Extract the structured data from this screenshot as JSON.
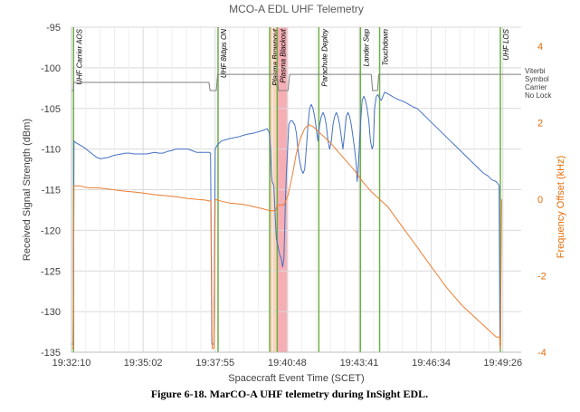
{
  "chart_data": {
    "type": "line",
    "title": "MCO-A EDL UHF Telemetry",
    "xlabel": "Spacecraft Event Time (SCET)",
    "ylabel": "Received Signal Strength (dBm)",
    "y2label": "Frequency Offset (kHz)",
    "x_unit": "seconds since 19:32:10 SCET",
    "xlim": [
      0,
      1080
    ],
    "ylim": [
      -135,
      -95
    ],
    "y2lim": [
      -4,
      4.5
    ],
    "xticks": [
      {
        "value": 0,
        "label": "19:32:10"
      },
      {
        "value": 172,
        "label": "19:35:02"
      },
      {
        "value": 345,
        "label": "19:37:55"
      },
      {
        "value": 518,
        "label": "19:40:48"
      },
      {
        "value": 691,
        "label": "19:43:41"
      },
      {
        "value": 864,
        "label": "19:46:34"
      },
      {
        "value": 1036,
        "label": "19:49:26"
      }
    ],
    "yticks": [
      {
        "value": -95,
        "label": "-95"
      },
      {
        "value": -100,
        "label": "-100"
      },
      {
        "value": -105,
        "label": "-105"
      },
      {
        "value": -110,
        "label": "-110"
      },
      {
        "value": -115,
        "label": "-115"
      },
      {
        "value": -120,
        "label": "-120"
      },
      {
        "value": -125,
        "label": "-125"
      },
      {
        "value": -130,
        "label": "-130"
      },
      {
        "value": -135,
        "label": "-135"
      }
    ],
    "y2ticks": [
      {
        "value": 4,
        "label": "4"
      },
      {
        "value": 2,
        "label": "2"
      },
      {
        "value": 0,
        "label": "0"
      },
      {
        "value": -2,
        "label": "-2"
      },
      {
        "value": -4,
        "label": "-4"
      }
    ],
    "grid": true,
    "shaded_regions": [
      {
        "name": "Plasma Brownout",
        "x0": 476,
        "x1": 494,
        "color": "#f8cbad"
      },
      {
        "name": "Plasma Blackout",
        "x0": 494,
        "x1": 520,
        "color": "#f4a0a8"
      }
    ],
    "events": [
      {
        "x": 5,
        "label": "UHF Carrier AOS"
      },
      {
        "x": 352,
        "label": "UHF 8kbps ON"
      },
      {
        "x": 476,
        "label": "Plasma Brownout"
      },
      {
        "x": 494,
        "label": "Plasma Blackout"
      },
      {
        "x": 594,
        "label": "Parachute Deploy"
      },
      {
        "x": 694,
        "label": "Lander Sep"
      },
      {
        "x": 740,
        "label": "Touchdown"
      },
      {
        "x": 1030,
        "label": "UHF LOS"
      }
    ],
    "lock_annotation": {
      "label_lines": [
        "Viterbi",
        "Symbol",
        "Carrier",
        "No Lock"
      ],
      "y": -100.8
    },
    "series": [
      {
        "axis": "left",
        "color": "#4472c4",
        "points": [
          [
            0,
            -134
          ],
          [
            4,
            -134
          ],
          [
            6,
            -109
          ],
          [
            10,
            -109.2
          ],
          [
            20,
            -109.5
          ],
          [
            30,
            -109.8
          ],
          [
            40,
            -110.2
          ],
          [
            50,
            -110.6
          ],
          [
            60,
            -111
          ],
          [
            70,
            -111.2
          ],
          [
            80,
            -111.1
          ],
          [
            90,
            -111
          ],
          [
            100,
            -110.8
          ],
          [
            110,
            -110.7
          ],
          [
            120,
            -110.6
          ],
          [
            130,
            -110.5
          ],
          [
            140,
            -110.5
          ],
          [
            150,
            -110.6
          ],
          [
            160,
            -110.6
          ],
          [
            170,
            -110.6
          ],
          [
            180,
            -110.6
          ],
          [
            190,
            -110.5
          ],
          [
            200,
            -110.4
          ],
          [
            210,
            -110.5
          ],
          [
            220,
            -110.5
          ],
          [
            230,
            -110.3
          ],
          [
            240,
            -110.2
          ],
          [
            250,
            -110
          ],
          [
            260,
            -110
          ],
          [
            270,
            -110
          ],
          [
            280,
            -110
          ],
          [
            290,
            -110.2
          ],
          [
            300,
            -110.4
          ],
          [
            330,
            -110.4
          ],
          [
            334,
            -110.5
          ],
          [
            337,
            -134
          ],
          [
            342,
            -134
          ],
          [
            345,
            -110
          ],
          [
            350,
            -109.5
          ],
          [
            360,
            -109
          ],
          [
            380,
            -108.7
          ],
          [
            400,
            -108.5
          ],
          [
            420,
            -108.2
          ],
          [
            440,
            -108
          ],
          [
            460,
            -107.7
          ],
          [
            470,
            -107.5
          ],
          [
            475,
            -108
          ],
          [
            478,
            -110
          ],
          [
            480,
            -113
          ],
          [
            482,
            -114
          ],
          [
            486,
            -114.5
          ],
          [
            488,
            -117
          ],
          [
            492,
            -121
          ],
          [
            496,
            -122
          ],
          [
            500,
            -123
          ],
          [
            504,
            -123.5
          ],
          [
            507,
            -124.5
          ],
          [
            510,
            -123.5
          ],
          [
            512,
            -120
          ],
          [
            514,
            -116
          ],
          [
            516,
            -113
          ],
          [
            518,
            -111
          ],
          [
            520,
            -109
          ],
          [
            522,
            -107
          ],
          [
            526,
            -106.5
          ],
          [
            530,
            -106.5
          ],
          [
            536,
            -107
          ],
          [
            540,
            -108
          ],
          [
            544,
            -110
          ],
          [
            548,
            -111.5
          ],
          [
            552,
            -112.5
          ],
          [
            556,
            -113
          ],
          [
            560,
            -112.5
          ],
          [
            564,
            -110
          ],
          [
            568,
            -107
          ],
          [
            572,
            -105
          ],
          [
            576,
            -104.5
          ],
          [
            580,
            -105
          ],
          [
            584,
            -106
          ],
          [
            588,
            -107.5
          ],
          [
            592,
            -109
          ],
          [
            594,
            -108
          ],
          [
            596,
            -107
          ],
          [
            600,
            -106
          ],
          [
            604,
            -105.5
          ],
          [
            608,
            -106
          ],
          [
            612,
            -107
          ],
          [
            616,
            -109
          ],
          [
            620,
            -110
          ],
          [
            624,
            -109
          ],
          [
            628,
            -107
          ],
          [
            632,
            -106
          ],
          [
            636,
            -105.5
          ],
          [
            640,
            -106
          ],
          [
            644,
            -107
          ],
          [
            648,
            -108.5
          ],
          [
            652,
            -110
          ],
          [
            656,
            -108
          ],
          [
            660,
            -106
          ],
          [
            664,
            -105.5
          ],
          [
            668,
            -106
          ],
          [
            672,
            -107
          ],
          [
            676,
            -108.5
          ],
          [
            680,
            -110
          ],
          [
            684,
            -112
          ],
          [
            686,
            -114
          ],
          [
            688,
            -113
          ],
          [
            690,
            -111
          ],
          [
            694,
            -107
          ],
          [
            698,
            -104
          ],
          [
            702,
            -103.5
          ],
          [
            706,
            -104
          ],
          [
            710,
            -105
          ],
          [
            714,
            -106.5
          ],
          [
            718,
            -109
          ],
          [
            722,
            -110
          ],
          [
            725,
            -109.5
          ],
          [
            728,
            -105
          ],
          [
            732,
            -103.5
          ],
          [
            736,
            -103.3
          ],
          [
            740,
            -103.8
          ],
          [
            744,
            -104
          ],
          [
            748,
            -103.5
          ],
          [
            752,
            -103
          ],
          [
            760,
            -103.2
          ],
          [
            770,
            -103.5
          ],
          [
            780,
            -103.8
          ],
          [
            790,
            -104
          ],
          [
            800,
            -104.2
          ],
          [
            810,
            -104.5
          ],
          [
            820,
            -104.8
          ],
          [
            830,
            -105
          ],
          [
            840,
            -105.5
          ],
          [
            850,
            -106
          ],
          [
            860,
            -106.5
          ],
          [
            870,
            -107
          ],
          [
            880,
            -107.5
          ],
          [
            890,
            -108
          ],
          [
            900,
            -108.5
          ],
          [
            910,
            -109
          ],
          [
            920,
            -109.5
          ],
          [
            930,
            -110
          ],
          [
            940,
            -110.5
          ],
          [
            950,
            -111
          ],
          [
            960,
            -111.5
          ],
          [
            970,
            -112
          ],
          [
            980,
            -112.5
          ],
          [
            990,
            -113
          ],
          [
            1000,
            -113.3
          ],
          [
            1010,
            -113.8
          ],
          [
            1020,
            -114
          ],
          [
            1027,
            -114.5
          ],
          [
            1029,
            -134
          ],
          [
            1032,
            -134
          ]
        ]
      },
      {
        "axis": "left",
        "color": "#808080",
        "points": [
          [
            0,
            -102.8
          ],
          [
            4,
            -102.8
          ],
          [
            6,
            -101.8
          ],
          [
            330,
            -101.8
          ],
          [
            333,
            -102.8
          ],
          [
            348,
            -102.8
          ],
          [
            351,
            -100.8
          ],
          [
            494,
            -100.8
          ],
          [
            497,
            -102.8
          ],
          [
            520,
            -102.8
          ],
          [
            524,
            -100.8
          ],
          [
            720,
            -100.8
          ],
          [
            723,
            -102.8
          ],
          [
            735,
            -102.8
          ],
          [
            738,
            -100.8
          ],
          [
            1080,
            -100.8
          ]
        ]
      },
      {
        "axis": "right",
        "color": "#ed7d31",
        "points": [
          [
            2,
            -3.9
          ],
          [
            4,
            -3.9
          ],
          [
            6,
            0.35
          ],
          [
            20,
            0.35
          ],
          [
            40,
            0.3
          ],
          [
            60,
            0.3
          ],
          [
            80,
            0.28
          ],
          [
            100,
            0.25
          ],
          [
            120,
            0.22
          ],
          [
            140,
            0.2
          ],
          [
            160,
            0.18
          ],
          [
            180,
            0.15
          ],
          [
            200,
            0.12
          ],
          [
            220,
            0.1
          ],
          [
            240,
            0.08
          ],
          [
            260,
            0.05
          ],
          [
            280,
            0.02
          ],
          [
            300,
            0
          ],
          [
            320,
            -0.02
          ],
          [
            335,
            -0.05
          ],
          [
            338,
            -3.9
          ],
          [
            342,
            -3.9
          ],
          [
            345,
            0
          ],
          [
            360,
            -0.05
          ],
          [
            380,
            -0.1
          ],
          [
            400,
            -0.12
          ],
          [
            420,
            -0.15
          ],
          [
            440,
            -0.2
          ],
          [
            460,
            -0.25
          ],
          [
            476,
            -0.3
          ],
          [
            490,
            -0.3
          ],
          [
            494,
            -0.15
          ],
          [
            510,
            -0.15
          ],
          [
            520,
            0.1
          ],
          [
            530,
            0.6
          ],
          [
            540,
            1.2
          ],
          [
            550,
            1.6
          ],
          [
            560,
            1.85
          ],
          [
            570,
            1.95
          ],
          [
            580,
            1.9
          ],
          [
            590,
            1.8
          ],
          [
            600,
            1.7
          ],
          [
            620,
            1.5
          ],
          [
            640,
            1.25
          ],
          [
            660,
            1.0
          ],
          [
            680,
            0.75
          ],
          [
            700,
            0.45
          ],
          [
            720,
            0.2
          ],
          [
            740,
            0
          ],
          [
            760,
            -0.2
          ],
          [
            780,
            -0.5
          ],
          [
            800,
            -0.8
          ],
          [
            820,
            -1.1
          ],
          [
            840,
            -1.4
          ],
          [
            860,
            -1.7
          ],
          [
            880,
            -2.0
          ],
          [
            900,
            -2.3
          ],
          [
            920,
            -2.55
          ],
          [
            940,
            -2.8
          ],
          [
            960,
            -3.0
          ],
          [
            980,
            -3.2
          ],
          [
            1000,
            -3.4
          ],
          [
            1020,
            -3.6
          ],
          [
            1028,
            -3.6
          ],
          [
            1030,
            -3.9
          ],
          [
            1033,
            0
          ]
        ]
      }
    ],
    "caption": "Figure 6-18. MarCO-A UHF telemetry during InSight EDL."
  }
}
